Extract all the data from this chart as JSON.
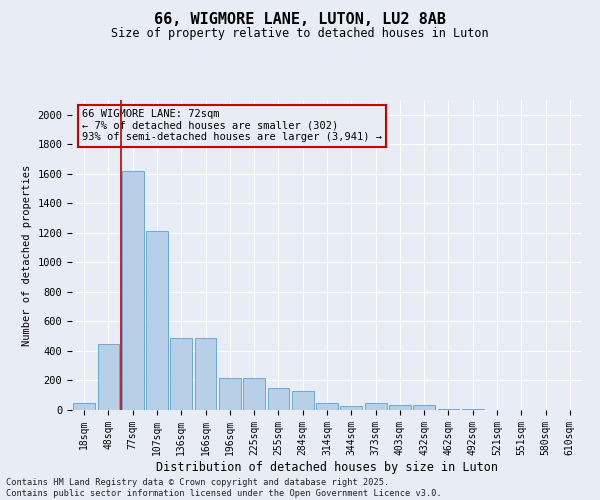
{
  "title": "66, WIGMORE LANE, LUTON, LU2 8AB",
  "subtitle": "Size of property relative to detached houses in Luton",
  "xlabel": "Distribution of detached houses by size in Luton",
  "ylabel": "Number of detached properties",
  "categories": [
    "18sqm",
    "48sqm",
    "77sqm",
    "107sqm",
    "136sqm",
    "166sqm",
    "196sqm",
    "225sqm",
    "255sqm",
    "284sqm",
    "314sqm",
    "344sqm",
    "373sqm",
    "403sqm",
    "432sqm",
    "462sqm",
    "492sqm",
    "521sqm",
    "551sqm",
    "580sqm",
    "610sqm"
  ],
  "values": [
    50,
    450,
    1620,
    1210,
    490,
    490,
    215,
    215,
    150,
    130,
    50,
    25,
    45,
    35,
    35,
    5,
    5,
    3,
    2,
    2,
    1
  ],
  "bar_color": "#b8cfe8",
  "bar_edge_color": "#6aaad4",
  "bg_color": "#e8edf5",
  "grid_color": "#ffffff",
  "vline_color": "#c00000",
  "vline_x_index": 1.5,
  "annotation_text": "66 WIGMORE LANE: 72sqm\n← 7% of detached houses are smaller (302)\n93% of semi-detached houses are larger (3,941) →",
  "annotation_box_color": "#cc0000",
  "footer": "Contains HM Land Registry data © Crown copyright and database right 2025.\nContains public sector information licensed under the Open Government Licence v3.0.",
  "ylim": [
    0,
    2100
  ],
  "yticks": [
    0,
    200,
    400,
    600,
    800,
    1000,
    1200,
    1400,
    1600,
    1800,
    2000
  ]
}
